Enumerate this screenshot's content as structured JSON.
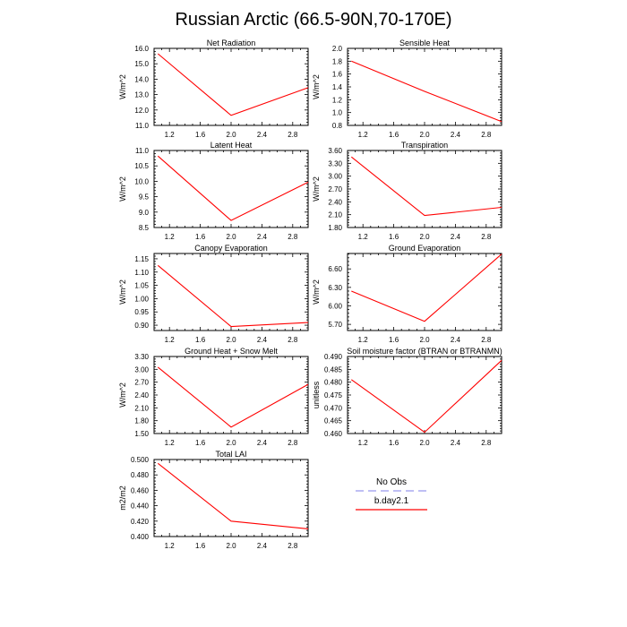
{
  "figure": {
    "title": "Russian Arctic (66.5-90N,70-170E)"
  },
  "chart_data": [
    {
      "type": "line",
      "title": "Net Radiation",
      "xlabel": "",
      "ylabel": "W/m^2",
      "xlim": [
        1.0,
        3.0
      ],
      "ylim": [
        11.0,
        16.0
      ],
      "xticks": [
        "1.2",
        "1.6",
        "2.0",
        "2.4",
        "2.8"
      ],
      "yticks": [
        "11.0",
        "12.0",
        "13.0",
        "14.0",
        "15.0",
        "16.0"
      ],
      "x": [
        1.05,
        2.0,
        3.0
      ],
      "series": [
        {
          "name": "b.day2.1",
          "color": "#ff0000",
          "values": [
            15.65,
            11.65,
            13.45
          ]
        }
      ]
    },
    {
      "type": "line",
      "title": "Sensible Heat",
      "xlabel": "",
      "ylabel": "W/m^2",
      "xlim": [
        1.0,
        3.0
      ],
      "ylim": [
        0.8,
        2.0
      ],
      "xticks": [
        "1.2",
        "1.6",
        "2.0",
        "2.4",
        "2.8"
      ],
      "yticks": [
        "0.8",
        "1.0",
        "1.2",
        "1.4",
        "1.6",
        "1.8",
        "2.0"
      ],
      "x": [
        1.05,
        2.0,
        3.0
      ],
      "series": [
        {
          "name": "b.day2.1",
          "color": "#ff0000",
          "values": [
            1.8,
            1.33,
            0.86
          ]
        }
      ]
    },
    {
      "type": "line",
      "title": "Latent Heat",
      "xlabel": "",
      "ylabel": "W/m^2",
      "xlim": [
        1.0,
        3.0
      ],
      "ylim": [
        8.5,
        11.0
      ],
      "xticks": [
        "1.2",
        "1.6",
        "2.0",
        "2.4",
        "2.8"
      ],
      "yticks": [
        "8.5",
        "9.0",
        "9.5",
        "10.0",
        "10.5",
        "11.0"
      ],
      "x": [
        1.05,
        2.0,
        3.0
      ],
      "series": [
        {
          "name": "b.day2.1",
          "color": "#ff0000",
          "values": [
            10.82,
            8.73,
            9.97
          ]
        }
      ]
    },
    {
      "type": "line",
      "title": "Transpiration",
      "xlabel": "",
      "ylabel": "W/m^2",
      "xlim": [
        1.0,
        3.0
      ],
      "ylim": [
        1.8,
        3.6
      ],
      "xticks": [
        "1.2",
        "1.6",
        "2.0",
        "2.4",
        "2.8"
      ],
      "yticks": [
        "1.80",
        "2.10",
        "2.40",
        "2.70",
        "3.00",
        "3.30",
        "3.60"
      ],
      "x": [
        1.05,
        2.0,
        3.0
      ],
      "series": [
        {
          "name": "b.day2.1",
          "color": "#ff0000",
          "values": [
            3.45,
            2.08,
            2.27
          ]
        }
      ]
    },
    {
      "type": "line",
      "title": "Canopy Evaporation",
      "xlabel": "",
      "ylabel": "W/m^2",
      "xlim": [
        1.0,
        3.0
      ],
      "ylim": [
        0.88,
        1.17
      ],
      "xticks": [
        "1.2",
        "1.6",
        "2.0",
        "2.4",
        "2.8"
      ],
      "yticks": [
        "0.90",
        "0.95",
        "1.00",
        "1.05",
        "1.10",
        "1.15"
      ],
      "x": [
        1.05,
        2.0,
        3.0
      ],
      "series": [
        {
          "name": "b.day2.1",
          "color": "#ff0000",
          "values": [
            1.125,
            0.895,
            0.91
          ]
        }
      ]
    },
    {
      "type": "line",
      "title": "Ground Evaporation",
      "xlabel": "",
      "ylabel": "W/m^2",
      "xlim": [
        1.0,
        3.0
      ],
      "ylim": [
        5.6,
        6.85
      ],
      "xticks": [
        "1.2",
        "1.6",
        "2.0",
        "2.4",
        "2.8"
      ],
      "yticks": [
        "5.70",
        "6.00",
        "6.30",
        "6.60"
      ],
      "x": [
        1.05,
        2.0,
        3.0
      ],
      "series": [
        {
          "name": "b.day2.1",
          "color": "#ff0000",
          "values": [
            6.24,
            5.75,
            6.84
          ]
        }
      ]
    },
    {
      "type": "line",
      "title": "Ground Heat + Snow Melt",
      "xlabel": "",
      "ylabel": "W/m^2",
      "xlim": [
        1.0,
        3.0
      ],
      "ylim": [
        1.5,
        3.3
      ],
      "xticks": [
        "1.2",
        "1.6",
        "2.0",
        "2.4",
        "2.8"
      ],
      "yticks": [
        "1.50",
        "1.80",
        "2.10",
        "2.40",
        "2.70",
        "3.00",
        "3.30"
      ],
      "x": [
        1.05,
        2.0,
        3.0
      ],
      "series": [
        {
          "name": "b.day2.1",
          "color": "#ff0000",
          "values": [
            3.05,
            1.65,
            2.65
          ]
        }
      ]
    },
    {
      "type": "line",
      "title": "Soil moisture factor (BTRAN or BTRANMN)",
      "xlabel": "",
      "ylabel": "unitless",
      "xlim": [
        1.0,
        3.0
      ],
      "ylim": [
        0.46,
        0.49
      ],
      "xticks": [
        "1.2",
        "1.6",
        "2.0",
        "2.4",
        "2.8"
      ],
      "yticks": [
        "0.460",
        "0.465",
        "0.470",
        "0.475",
        "0.480",
        "0.485",
        "0.490"
      ],
      "x": [
        1.05,
        2.0,
        3.0
      ],
      "series": [
        {
          "name": "b.day2.1",
          "color": "#ff0000",
          "values": [
            0.481,
            0.4605,
            0.4885
          ]
        }
      ]
    },
    {
      "type": "line",
      "title": "Total LAI",
      "xlabel": "",
      "ylabel": "m2/m2",
      "xlim": [
        1.0,
        3.0
      ],
      "ylim": [
        0.4,
        0.5
      ],
      "xticks": [
        "1.2",
        "1.6",
        "2.0",
        "2.4",
        "2.8"
      ],
      "yticks": [
        "0.400",
        "0.420",
        "0.440",
        "0.460",
        "0.480",
        "0.500"
      ],
      "x": [
        1.05,
        2.0,
        3.0
      ],
      "series": [
        {
          "name": "b.day2.1",
          "color": "#ff0000",
          "values": [
            0.495,
            0.42,
            0.41
          ]
        }
      ]
    }
  ],
  "legend": {
    "items": [
      {
        "label": "No Obs",
        "color": "#9999ee",
        "style": "dashed"
      },
      {
        "label": "b.day2.1",
        "color": "#ff0000",
        "style": "solid"
      }
    ]
  }
}
